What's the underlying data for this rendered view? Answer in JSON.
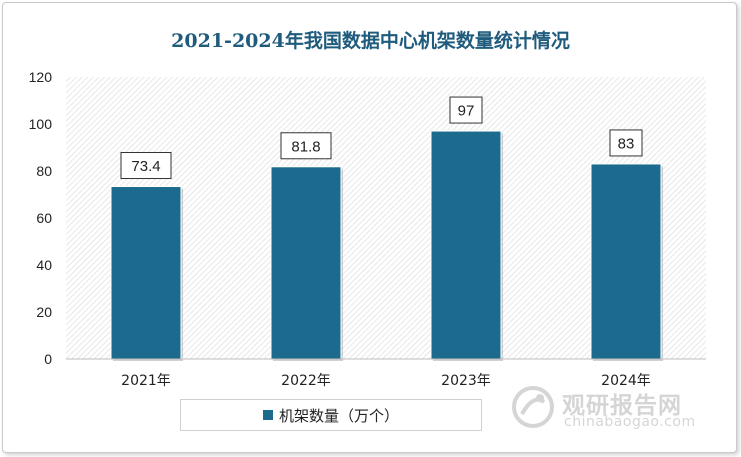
{
  "title": "2021-2024年我国数据中心机架数量统计情况",
  "chart_data": {
    "type": "bar",
    "categories": [
      "2021年",
      "2022年",
      "2023年",
      "2024年"
    ],
    "series": [
      {
        "name": "机架数量（万个）",
        "values": [
          73.4,
          81.8,
          97,
          83
        ],
        "color": "#1c6b8e"
      }
    ],
    "data_labels": [
      "73.4",
      "81.8",
      "97",
      "83"
    ],
    "ylim": [
      0,
      120
    ],
    "yticks": [
      0,
      20,
      40,
      60,
      80,
      100,
      120
    ],
    "grid": false,
    "legend_position": "bottom"
  },
  "legend": {
    "label": "机架数量（万个）",
    "color": "#1c6b8e"
  },
  "watermark": {
    "name_cn": "观研报告网",
    "domain": "chinabaogao.com",
    "icon": "logo-icon"
  }
}
